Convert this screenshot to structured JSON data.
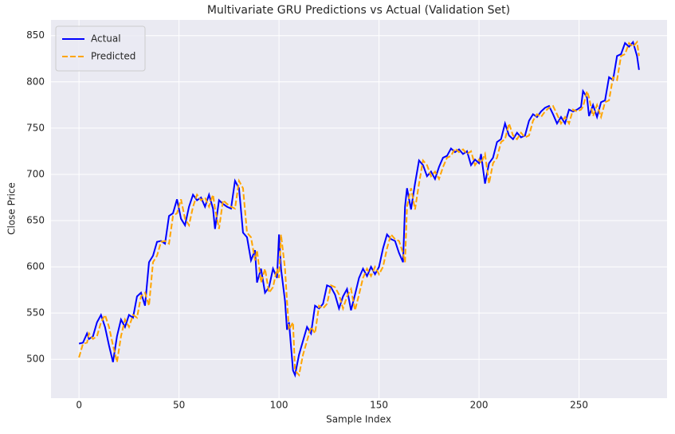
{
  "chart_data": {
    "type": "line",
    "title": "Multivariate GRU Predictions vs Actual (Validation Set)",
    "x_label": "Sample Index",
    "y_label": "Close Price",
    "x": [
      0,
      2,
      4,
      5,
      7,
      9,
      11,
      13,
      15,
      17,
      19,
      21,
      23,
      25,
      27,
      29,
      31,
      33,
      35,
      37,
      39,
      41,
      43,
      45,
      47,
      49,
      51,
      53,
      55,
      57,
      59,
      61,
      63,
      65,
      67,
      68,
      70,
      72,
      74,
      76,
      78,
      80,
      82,
      84,
      86,
      88,
      89,
      91,
      93,
      95,
      97,
      99,
      100,
      101,
      103,
      104,
      105,
      107,
      108,
      110,
      112,
      114,
      116,
      118,
      120,
      122,
      124,
      126,
      128,
      130,
      132,
      134,
      136,
      138,
      140,
      142,
      144,
      146,
      148,
      150,
      152,
      154,
      156,
      158,
      160,
      162,
      163,
      164,
      166,
      168,
      170,
      172,
      174,
      176,
      178,
      180,
      182,
      184,
      186,
      188,
      190,
      192,
      194,
      196,
      198,
      200,
      201,
      203,
      205,
      207,
      209,
      211,
      213,
      215,
      217,
      219,
      221,
      223,
      225,
      227,
      229,
      231,
      233,
      235,
      237,
      239,
      241,
      243,
      245,
      247,
      249,
      251,
      252,
      254,
      255,
      257,
      259,
      261,
      263,
      265,
      267,
      269,
      271,
      273,
      275,
      277,
      279,
      280
    ],
    "series": [
      {
        "name": "Actual",
        "color": "#0000ff",
        "linestyle": "solid",
        "values": [
          517,
          518,
          528,
          522,
          525,
          540,
          548,
          535,
          515,
          497,
          525,
          543,
          535,
          548,
          545,
          568,
          572,
          558,
          605,
          612,
          627,
          628,
          625,
          655,
          658,
          673,
          652,
          645,
          665,
          678,
          672,
          675,
          665,
          678,
          663,
          641,
          672,
          668,
          665,
          663,
          693,
          685,
          637,
          632,
          607,
          618,
          583,
          598,
          572,
          578,
          598,
          588,
          635,
          598,
          563,
          532,
          540,
          488,
          483,
          505,
          520,
          535,
          528,
          558,
          555,
          560,
          580,
          578,
          570,
          555,
          568,
          576,
          553,
          570,
          588,
          598,
          590,
          600,
          592,
          600,
          620,
          635,
          630,
          628,
          615,
          605,
          665,
          685,
          662,
          690,
          715,
          710,
          698,
          703,
          695,
          708,
          718,
          720,
          728,
          724,
          727,
          722,
          725,
          710,
          716,
          712,
          722,
          690,
          712,
          718,
          735,
          738,
          755,
          742,
          738,
          745,
          740,
          742,
          758,
          765,
          762,
          768,
          772,
          774,
          765,
          755,
          762,
          755,
          770,
          768,
          770,
          773,
          790,
          783,
          763,
          775,
          762,
          778,
          780,
          805,
          802,
          828,
          830,
          842,
          838,
          843,
          828,
          813
        ]
      },
      {
        "name": "Predicted",
        "color": "#ffa500",
        "linestyle": "dashed",
        "values": [
          502,
          517,
          518,
          528,
          522,
          525,
          540,
          548,
          535,
          515,
          497,
          525,
          543,
          535,
          548,
          545,
          568,
          572,
          558,
          605,
          612,
          627,
          628,
          625,
          655,
          658,
          673,
          652,
          645,
          665,
          678,
          672,
          675,
          665,
          678,
          663,
          641,
          672,
          668,
          665,
          663,
          693,
          685,
          637,
          632,
          607,
          618,
          583,
          598,
          572,
          578,
          598,
          588,
          635,
          598,
          563,
          532,
          540,
          488,
          483,
          505,
          520,
          535,
          528,
          558,
          555,
          560,
          580,
          578,
          570,
          555,
          568,
          576,
          553,
          570,
          588,
          598,
          590,
          600,
          592,
          600,
          620,
          635,
          630,
          628,
          615,
          605,
          665,
          685,
          662,
          690,
          715,
          710,
          698,
          703,
          695,
          708,
          718,
          720,
          728,
          724,
          727,
          722,
          725,
          710,
          716,
          712,
          722,
          690,
          712,
          718,
          735,
          738,
          755,
          742,
          738,
          745,
          740,
          742,
          758,
          765,
          762,
          768,
          772,
          774,
          765,
          755,
          762,
          755,
          770,
          768,
          770,
          773,
          790,
          783,
          763,
          775,
          762,
          778,
          780,
          805,
          802,
          828,
          830,
          842,
          838,
          843,
          828
        ]
      }
    ],
    "xlim": [
      -14,
      294
    ],
    "ylim": [
      458,
      867
    ],
    "xticks": [
      0,
      50,
      100,
      150,
      200,
      250
    ],
    "yticks": [
      500,
      550,
      600,
      650,
      700,
      750,
      800,
      850
    ],
    "grid": true,
    "legend": "upper left"
  }
}
